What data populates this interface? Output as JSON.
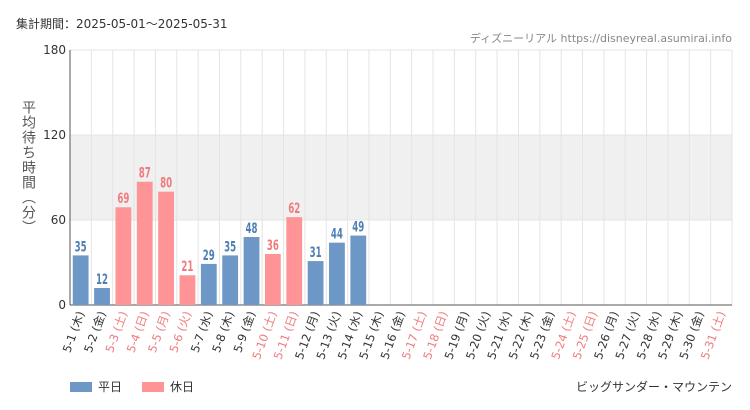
{
  "header": {
    "period": "集計期間：2025-05-01〜2025-05-31",
    "source": "ディズニーリアル https://disneyreal.asumirai.info",
    "attraction": "ビッグサンダー・マウンテン"
  },
  "colors": {
    "weekday": "#6c97c6",
    "holiday": "#ff9497",
    "weekday_text": "#4f7fb5",
    "holiday_text": "#ee7b7e",
    "grid": "#e4e4e4",
    "band": "#f0f0f0"
  },
  "chart_data": {
    "type": "bar",
    "ylabel": "平均待ち時間（分）",
    "ylim": [
      0,
      180
    ],
    "yticks": [
      0,
      60,
      120,
      180
    ],
    "grid": true,
    "legend_position": "bottom-left",
    "legend": [
      {
        "key": "weekday",
        "label": "平日"
      },
      {
        "key": "holiday",
        "label": "休日"
      }
    ],
    "categories": [
      "5-1 (木)",
      "5-2 (金)",
      "5-3 (土)",
      "5-4 (日)",
      "5-5 (月)",
      "5-6 (火)",
      "5-7 (水)",
      "5-8 (木)",
      "5-9 (金)",
      "5-10 (土)",
      "5-11 (日)",
      "5-12 (月)",
      "5-13 (火)",
      "5-14 (水)",
      "5-15 (木)",
      "5-16 (金)",
      "5-17 (土)",
      "5-18 (日)",
      "5-19 (月)",
      "5-20 (火)",
      "5-21 (水)",
      "5-22 (木)",
      "5-23 (金)",
      "5-24 (土)",
      "5-25 (日)",
      "5-26 (月)",
      "5-27 (火)",
      "5-28 (水)",
      "5-29 (木)",
      "5-30 (金)",
      "5-31 (土)"
    ],
    "day_type": [
      "weekday",
      "weekday",
      "holiday",
      "holiday",
      "holiday",
      "holiday",
      "weekday",
      "weekday",
      "weekday",
      "holiday",
      "holiday",
      "weekday",
      "weekday",
      "weekday",
      "weekday",
      "weekday",
      "holiday",
      "holiday",
      "weekday",
      "weekday",
      "weekday",
      "weekday",
      "weekday",
      "holiday",
      "holiday",
      "weekday",
      "weekday",
      "weekday",
      "weekday",
      "weekday",
      "holiday"
    ],
    "values": [
      35,
      12,
      69,
      87,
      80,
      21,
      29,
      35,
      48,
      36,
      62,
      31,
      44,
      49,
      null,
      null,
      null,
      null,
      null,
      null,
      null,
      null,
      null,
      null,
      null,
      null,
      null,
      null,
      null,
      null,
      null
    ]
  }
}
